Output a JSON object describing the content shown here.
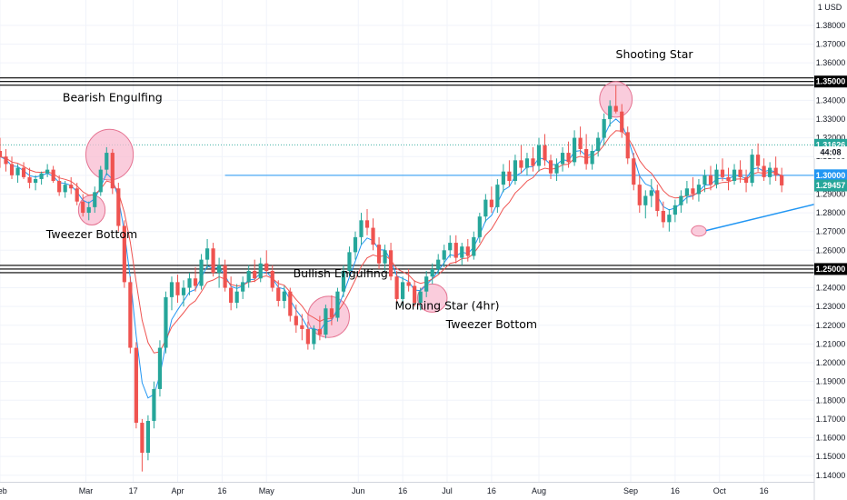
{
  "currency_label": "1 USD",
  "chart_data": {
    "type": "candlestick",
    "symbol_currency": "USD",
    "y_ticks": [
      "1.38000",
      "1.37000",
      "1.36000",
      "1.35000",
      "1.34000",
      "1.33000",
      "1.32000",
      "1.31000",
      "1.30000",
      "1.29000",
      "1.28000",
      "1.27000",
      "1.26000",
      "1.25000",
      "1.24000",
      "1.23000",
      "1.22000",
      "1.21000",
      "1.20000",
      "1.19000",
      "1.18000",
      "1.17000",
      "1.16000",
      "1.15000",
      "1.14000"
    ],
    "ylim": [
      1.1365,
      1.3935
    ],
    "x_ticks": [
      "Feb",
      "Mar",
      "17",
      "Apr",
      "16",
      "May",
      "Jun",
      "16",
      "Jul",
      "16",
      "Aug",
      "Sep",
      "16",
      "Oct",
      "16"
    ],
    "x_tick_days": [
      0,
      29,
      45,
      60,
      75,
      90,
      121,
      136,
      151,
      166,
      182,
      213,
      228,
      243,
      258
    ],
    "xlim": [
      0,
      275
    ],
    "candles": [
      [
        0,
        1.313,
        1.32,
        1.304,
        1.31
      ],
      [
        2,
        1.31,
        1.314,
        1.302,
        1.306
      ],
      [
        4,
        1.306,
        1.31,
        1.298,
        1.3
      ],
      [
        6,
        1.3,
        1.306,
        1.296,
        1.304
      ],
      [
        8,
        1.304,
        1.307,
        1.298,
        1.299
      ],
      [
        10,
        1.299,
        1.304,
        1.293,
        1.296
      ],
      [
        12,
        1.296,
        1.3,
        1.292,
        1.298
      ],
      [
        14,
        1.298,
        1.302,
        1.295,
        1.301
      ],
      [
        16,
        1.301,
        1.306,
        1.299,
        1.303
      ],
      [
        18,
        1.303,
        1.305,
        1.296,
        1.297
      ],
      [
        20,
        1.297,
        1.3,
        1.289,
        1.291
      ],
      [
        22,
        1.291,
        1.297,
        1.288,
        1.295
      ],
      [
        24,
        1.295,
        1.299,
        1.29,
        1.293
      ],
      [
        26,
        1.293,
        1.296,
        1.284,
        1.286
      ],
      [
        28,
        1.286,
        1.29,
        1.278,
        1.28
      ],
      [
        30,
        1.28,
        1.286,
        1.276,
        1.283
      ],
      [
        32,
        1.283,
        1.294,
        1.28,
        1.291
      ],
      [
        34,
        1.291,
        1.305,
        1.289,
        1.303
      ],
      [
        36,
        1.303,
        1.315,
        1.3,
        1.312
      ],
      [
        38,
        1.312,
        1.314,
        1.29,
        1.293
      ],
      [
        40,
        1.293,
        1.296,
        1.27,
        1.273
      ],
      [
        42,
        1.273,
        1.276,
        1.24,
        1.243
      ],
      [
        44,
        1.243,
        1.246,
        1.205,
        1.208
      ],
      [
        46,
        1.208,
        1.211,
        1.165,
        1.168
      ],
      [
        48,
        1.168,
        1.17,
        1.142,
        1.152
      ],
      [
        50,
        1.152,
        1.172,
        1.148,
        1.169
      ],
      [
        52,
        1.169,
        1.19,
        1.165,
        1.186
      ],
      [
        54,
        1.186,
        1.212,
        1.182,
        1.208
      ],
      [
        56,
        1.208,
        1.238,
        1.205,
        1.235
      ],
      [
        58,
        1.235,
        1.246,
        1.228,
        1.243
      ],
      [
        60,
        1.243,
        1.247,
        1.232,
        1.236
      ],
      [
        62,
        1.236,
        1.244,
        1.23,
        1.24
      ],
      [
        64,
        1.24,
        1.248,
        1.236,
        1.245
      ],
      [
        66,
        1.245,
        1.251,
        1.238,
        1.241
      ],
      [
        68,
        1.241,
        1.258,
        1.239,
        1.255
      ],
      [
        70,
        1.255,
        1.266,
        1.25,
        1.261
      ],
      [
        72,
        1.261,
        1.264,
        1.246,
        1.248
      ],
      [
        74,
        1.248,
        1.256,
        1.24,
        1.252
      ],
      [
        76,
        1.252,
        1.255,
        1.238,
        1.24
      ],
      [
        78,
        1.24,
        1.246,
        1.228,
        1.232
      ],
      [
        80,
        1.232,
        1.242,
        1.229,
        1.238
      ],
      [
        82,
        1.238,
        1.246,
        1.234,
        1.243
      ],
      [
        84,
        1.243,
        1.252,
        1.24,
        1.249
      ],
      [
        86,
        1.249,
        1.255,
        1.243,
        1.245
      ],
      [
        88,
        1.245,
        1.256,
        1.243,
        1.253
      ],
      [
        90,
        1.253,
        1.26,
        1.247,
        1.249
      ],
      [
        92,
        1.249,
        1.252,
        1.238,
        1.24
      ],
      [
        94,
        1.24,
        1.244,
        1.23,
        1.233
      ],
      [
        96,
        1.233,
        1.241,
        1.229,
        1.238
      ],
      [
        98,
        1.238,
        1.24,
        1.222,
        1.225
      ],
      [
        100,
        1.225,
        1.231,
        1.216,
        1.22
      ],
      [
        102,
        1.22,
        1.226,
        1.212,
        1.218
      ],
      [
        104,
        1.218,
        1.222,
        1.207,
        1.21
      ],
      [
        106,
        1.21,
        1.22,
        1.207,
        1.218
      ],
      [
        108,
        1.218,
        1.225,
        1.212,
        1.215
      ],
      [
        110,
        1.215,
        1.231,
        1.213,
        1.229
      ],
      [
        112,
        1.229,
        1.236,
        1.22,
        1.224
      ],
      [
        114,
        1.224,
        1.24,
        1.222,
        1.238
      ],
      [
        116,
        1.238,
        1.252,
        1.235,
        1.249
      ],
      [
        118,
        1.249,
        1.262,
        1.246,
        1.259
      ],
      [
        120,
        1.259,
        1.27,
        1.255,
        1.267
      ],
      [
        122,
        1.267,
        1.28,
        1.263,
        1.276
      ],
      [
        124,
        1.276,
        1.282,
        1.268,
        1.272
      ],
      [
        126,
        1.272,
        1.277,
        1.26,
        1.263
      ],
      [
        128,
        1.263,
        1.267,
        1.25,
        1.253
      ],
      [
        130,
        1.253,
        1.263,
        1.249,
        1.26
      ],
      [
        132,
        1.26,
        1.264,
        1.244,
        1.246
      ],
      [
        134,
        1.246,
        1.249,
        1.232,
        1.234
      ],
      [
        136,
        1.234,
        1.246,
        1.23,
        1.243
      ],
      [
        138,
        1.243,
        1.25,
        1.238,
        1.241
      ],
      [
        140,
        1.241,
        1.244,
        1.23,
        1.232
      ],
      [
        142,
        1.232,
        1.24,
        1.228,
        1.238
      ],
      [
        144,
        1.238,
        1.249,
        1.235,
        1.246
      ],
      [
        146,
        1.246,
        1.253,
        1.242,
        1.25
      ],
      [
        148,
        1.25,
        1.258,
        1.247,
        1.255
      ],
      [
        150,
        1.255,
        1.263,
        1.251,
        1.26
      ],
      [
        152,
        1.26,
        1.268,
        1.256,
        1.264
      ],
      [
        154,
        1.264,
        1.268,
        1.253,
        1.256
      ],
      [
        156,
        1.256,
        1.264,
        1.252,
        1.262
      ],
      [
        158,
        1.262,
        1.266,
        1.254,
        1.257
      ],
      [
        160,
        1.257,
        1.27,
        1.255,
        1.267
      ],
      [
        162,
        1.267,
        1.28,
        1.264,
        1.278
      ],
      [
        164,
        1.278,
        1.29,
        1.275,
        1.287
      ],
      [
        166,
        1.287,
        1.294,
        1.28,
        1.283
      ],
      [
        168,
        1.283,
        1.298,
        1.28,
        1.295
      ],
      [
        170,
        1.295,
        1.306,
        1.291,
        1.302
      ],
      [
        172,
        1.302,
        1.308,
        1.294,
        1.297
      ],
      [
        174,
        1.297,
        1.311,
        1.295,
        1.308
      ],
      [
        176,
        1.308,
        1.316,
        1.301,
        1.304
      ],
      [
        178,
        1.304,
        1.312,
        1.3,
        1.309
      ],
      [
        180,
        1.309,
        1.315,
        1.302,
        1.305
      ],
      [
        182,
        1.305,
        1.32,
        1.302,
        1.316
      ],
      [
        184,
        1.316,
        1.322,
        1.305,
        1.308
      ],
      [
        186,
        1.308,
        1.311,
        1.298,
        1.301
      ],
      [
        188,
        1.301,
        1.309,
        1.297,
        1.306
      ],
      [
        190,
        1.306,
        1.315,
        1.302,
        1.312
      ],
      [
        192,
        1.312,
        1.318,
        1.304,
        1.307
      ],
      [
        194,
        1.307,
        1.324,
        1.305,
        1.32
      ],
      [
        196,
        1.32,
        1.326,
        1.311,
        1.314
      ],
      [
        198,
        1.314,
        1.322,
        1.303,
        1.306
      ],
      [
        200,
        1.306,
        1.316,
        1.303,
        1.313
      ],
      [
        202,
        1.313,
        1.323,
        1.31,
        1.32
      ],
      [
        204,
        1.32,
        1.333,
        1.316,
        1.33
      ],
      [
        206,
        1.33,
        1.34,
        1.326,
        1.337
      ],
      [
        208,
        1.337,
        1.348,
        1.333,
        1.334
      ],
      [
        210,
        1.334,
        1.338,
        1.32,
        1.323
      ],
      [
        212,
        1.323,
        1.326,
        1.306,
        1.309
      ],
      [
        214,
        1.309,
        1.312,
        1.292,
        1.295
      ],
      [
        216,
        1.295,
        1.3,
        1.28,
        1.284
      ],
      [
        218,
        1.284,
        1.292,
        1.277,
        1.289
      ],
      [
        220,
        1.289,
        1.298,
        1.283,
        1.292
      ],
      [
        222,
        1.292,
        1.295,
        1.278,
        1.281
      ],
      [
        224,
        1.281,
        1.286,
        1.272,
        1.275
      ],
      [
        226,
        1.275,
        1.282,
        1.27,
        1.279
      ],
      [
        228,
        1.279,
        1.287,
        1.275,
        1.284
      ],
      [
        230,
        1.284,
        1.292,
        1.28,
        1.289
      ],
      [
        232,
        1.289,
        1.297,
        1.285,
        1.293
      ],
      [
        234,
        1.293,
        1.299,
        1.287,
        1.29
      ],
      [
        236,
        1.29,
        1.298,
        1.286,
        1.295
      ],
      [
        238,
        1.295,
        1.303,
        1.291,
        1.3
      ],
      [
        240,
        1.3,
        1.305,
        1.292,
        1.295
      ],
      [
        242,
        1.295,
        1.306,
        1.293,
        1.303
      ],
      [
        244,
        1.303,
        1.309,
        1.297,
        1.299
      ],
      [
        246,
        1.299,
        1.304,
        1.292,
        1.297
      ],
      [
        248,
        1.297,
        1.306,
        1.295,
        1.303
      ],
      [
        250,
        1.303,
        1.308,
        1.296,
        1.299
      ],
      [
        252,
        1.299,
        1.303,
        1.291,
        1.296
      ],
      [
        254,
        1.296,
        1.314,
        1.294,
        1.311
      ],
      [
        256,
        1.311,
        1.317,
        1.302,
        1.305
      ],
      [
        258,
        1.305,
        1.309,
        1.297,
        1.299
      ],
      [
        260,
        1.299,
        1.307,
        1.295,
        1.304
      ],
      [
        262,
        1.304,
        1.31,
        1.297,
        1.3
      ],
      [
        264,
        1.3,
        1.304,
        1.291,
        1.2946
      ]
    ],
    "horizontal_levels": [
      1.35,
      1.25
    ],
    "level_labels": [
      "1.35000",
      "1.25000"
    ],
    "reference_line": {
      "value": 1.3,
      "label": "1.30000"
    },
    "dotted_line": 1.31626,
    "price_tags": [
      {
        "label": "1.31626",
        "value": 1.31626,
        "color": "#26a69a"
      },
      {
        "label": "44:08",
        "value": 1.31226,
        "color": "#ffffff"
      },
      {
        "label": "1.30000",
        "value": 1.3,
        "color": "#2196f3"
      },
      {
        "label": "1.29457",
        "value": 1.29457,
        "color": "#26a69a"
      }
    ],
    "trendline": {
      "from": [
        236,
        1.2705
      ],
      "to": [
        275,
        1.2845
      ]
    },
    "colors": {
      "up": "#26a69a",
      "down": "#ef5350",
      "ma_fast": "#2196f3",
      "ma_slow": "#ef5350",
      "grid": "#f0f3fa",
      "ellipse_fill": "#f8bbd0",
      "ellipse_stroke": "#e57391"
    },
    "annotations": [
      {
        "text": "Bearish Engulfing",
        "day": 38,
        "price": 1.3395
      },
      {
        "text": "Tweezer Bottom",
        "day": 31,
        "price": 1.2665
      },
      {
        "text": "Bullish Engulfing",
        "day": 115,
        "price": 1.2455
      },
      {
        "text": "Morning Star (4hr)",
        "day": 151,
        "price": 1.2285
      },
      {
        "text": "Tweezer Bottom",
        "day": 166,
        "price": 1.2185
      },
      {
        "text": "Shooting Star",
        "day": 221,
        "price": 1.3625
      }
    ],
    "pattern_circles": [
      {
        "day": 37,
        "price": 1.311,
        "rx_days": 8,
        "ry_price": 0.0135
      },
      {
        "day": 31,
        "price": 1.2815,
        "rx_days": 4.5,
        "ry_price": 0.008
      },
      {
        "day": 111,
        "price": 1.2245,
        "rx_days": 7,
        "ry_price": 0.011
      },
      {
        "day": 146,
        "price": 1.2345,
        "rx_days": 5,
        "ry_price": 0.0075
      },
      {
        "day": 208,
        "price": 1.3405,
        "rx_days": 5.5,
        "ry_price": 0.0095
      },
      {
        "day": 236,
        "price": 1.2703,
        "rx_days": 2.5,
        "ry_price": 0.0028
      }
    ]
  }
}
